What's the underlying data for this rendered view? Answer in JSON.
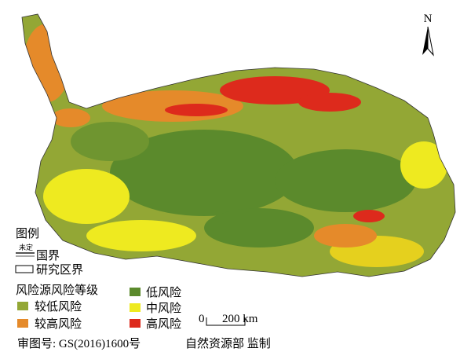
{
  "north_arrow": {
    "label": "N"
  },
  "legend": {
    "title": "图例",
    "boundary_note": "未定",
    "national_border": "国界",
    "study_area_border": "研究区界",
    "risk_title": "风险源风险等级",
    "items": [
      "较低风险",
      "低风险",
      "较高风险",
      "中风险",
      "高风险"
    ]
  },
  "scale_bar": {
    "start": "0",
    "end": "200 km"
  },
  "footer": {
    "approval": "审图号: GS(2016)1600号",
    "producer": "自然资源部 监制"
  }
}
